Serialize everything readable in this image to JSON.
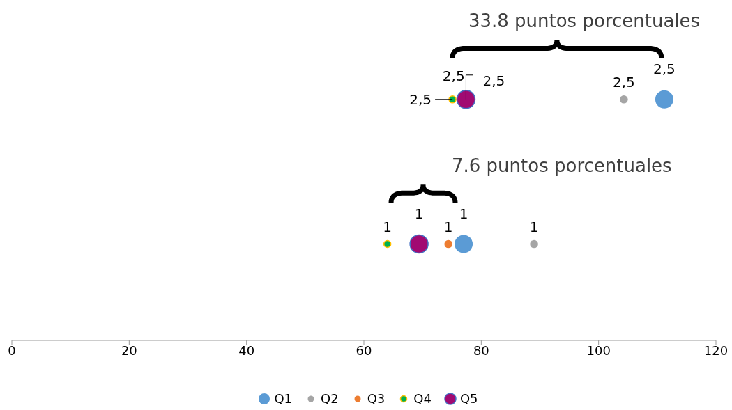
{
  "chart_data": {
    "type": "bubble",
    "xlim": [
      0,
      120
    ],
    "xticks": [
      0,
      20,
      40,
      60,
      80,
      100,
      120
    ],
    "tick_labels": "x",
    "legend": "bottom",
    "series": [
      {
        "name": "Q1",
        "color": "#5b9bd5",
        "x": [
          77.0,
          111.2
        ],
        "values": [
          1,
          2.5
        ],
        "sizes": [
          1,
          1
        ],
        "value_labels": [
          "1",
          "2,5"
        ]
      },
      {
        "name": "Q2",
        "color": "#a5a5a5",
        "x": [
          89.0,
          104.3
        ],
        "values": [
          1,
          2.5
        ],
        "sizes": [
          0.2,
          0.2
        ],
        "value_labels": [
          "1",
          "2,5"
        ]
      },
      {
        "name": "Q3",
        "color": "#ed7d31",
        "x": [
          74.4,
          null
        ],
        "values": [
          1,
          null
        ],
        "sizes": [
          0.2,
          null
        ],
        "value_labels": [
          "1",
          null
        ]
      },
      {
        "name": "Q4",
        "color": "#00b050",
        "x": [
          64.0,
          75.1
        ],
        "values": [
          1,
          2.5
        ],
        "sizes": [
          0.15,
          0.15
        ],
        "value_labels": [
          "1",
          "2,5"
        ]
      },
      {
        "name": "Q5",
        "color": "#a10a72",
        "x": [
          69.4,
          77.4
        ],
        "values": [
          1,
          2.5
        ],
        "sizes": [
          1,
          1
        ],
        "value_labels": [
          "1",
          "2,5"
        ]
      }
    ],
    "annotations": [
      "33.8 puntos porcentuales",
      "7.6 puntos porcentuales",
      "2,5"
    ]
  }
}
